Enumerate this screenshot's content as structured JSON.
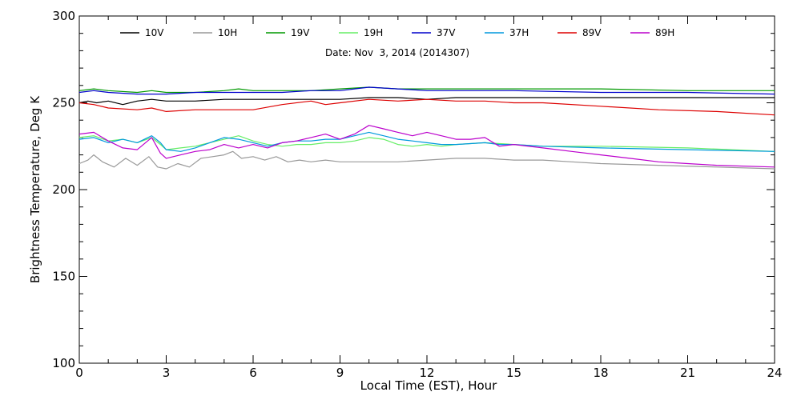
{
  "chart_data": {
    "type": "line",
    "title": "",
    "date_label": "Date: Nov  3, 2014 (2014307)",
    "xlabel": "Local Time (EST), Hour",
    "ylabel": "Brightness Temperature, Deg K",
    "xlim": [
      0,
      24
    ],
    "ylim": [
      100,
      300
    ],
    "xticks": [
      0,
      3,
      6,
      9,
      12,
      15,
      18,
      21,
      24
    ],
    "yticks": [
      100,
      150,
      200,
      250,
      300
    ],
    "grid": false,
    "legend_position": "top",
    "series": [
      {
        "name": "10V",
        "color": "#000000",
        "points": [
          [
            0,
            250
          ],
          [
            0.3,
            251
          ],
          [
            0.6,
            250
          ],
          [
            1,
            251
          ],
          [
            1.5,
            249
          ],
          [
            2,
            251
          ],
          [
            2.5,
            252
          ],
          [
            3,
            251
          ],
          [
            4,
            251
          ],
          [
            5,
            252
          ],
          [
            6,
            252
          ],
          [
            7,
            252
          ],
          [
            8,
            252
          ],
          [
            9,
            252
          ],
          [
            10,
            253
          ],
          [
            11,
            253
          ],
          [
            12,
            252
          ],
          [
            13,
            253
          ],
          [
            14,
            253
          ],
          [
            15,
            253
          ],
          [
            16,
            253
          ],
          [
            18,
            253
          ],
          [
            20,
            253
          ],
          [
            22,
            253
          ],
          [
            24,
            253
          ]
        ]
      },
      {
        "name": "10H",
        "color": "#999999",
        "points": [
          [
            0,
            215
          ],
          [
            0.3,
            217
          ],
          [
            0.5,
            220
          ],
          [
            0.8,
            216
          ],
          [
            1.2,
            213
          ],
          [
            1.6,
            218
          ],
          [
            2,
            214
          ],
          [
            2.4,
            219
          ],
          [
            2.7,
            213
          ],
          [
            3,
            212
          ],
          [
            3.4,
            215
          ],
          [
            3.8,
            213
          ],
          [
            4.2,
            218
          ],
          [
            4.6,
            219
          ],
          [
            5,
            220
          ],
          [
            5.3,
            222
          ],
          [
            5.6,
            218
          ],
          [
            6,
            219
          ],
          [
            6.4,
            217
          ],
          [
            6.8,
            219
          ],
          [
            7.2,
            216
          ],
          [
            7.6,
            217
          ],
          [
            8,
            216
          ],
          [
            8.5,
            217
          ],
          [
            9,
            216
          ],
          [
            10,
            216
          ],
          [
            11,
            216
          ],
          [
            12,
            217
          ],
          [
            13,
            218
          ],
          [
            14,
            218
          ],
          [
            15,
            217
          ],
          [
            16,
            217
          ],
          [
            17,
            216
          ],
          [
            18,
            215
          ],
          [
            20,
            214
          ],
          [
            22,
            213
          ],
          [
            24,
            212
          ]
        ]
      },
      {
        "name": "19V",
        "color": "#009900",
        "points": [
          [
            0,
            257
          ],
          [
            0.5,
            258
          ],
          [
            1,
            257
          ],
          [
            2,
            256
          ],
          [
            2.5,
            257
          ],
          [
            3,
            256
          ],
          [
            4,
            256
          ],
          [
            5,
            257
          ],
          [
            5.5,
            258
          ],
          [
            6,
            257
          ],
          [
            7,
            257
          ],
          [
            8,
            257
          ],
          [
            9,
            258
          ],
          [
            10,
            259
          ],
          [
            11,
            258
          ],
          [
            12,
            258
          ],
          [
            13,
            258
          ],
          [
            14,
            258
          ],
          [
            15,
            258
          ],
          [
            18,
            258
          ],
          [
            21,
            257
          ],
          [
            24,
            257
          ]
        ]
      },
      {
        "name": "19H",
        "color": "#66ee66",
        "points": [
          [
            0,
            230
          ],
          [
            0.5,
            231
          ],
          [
            1,
            228
          ],
          [
            1.5,
            229
          ],
          [
            2,
            227
          ],
          [
            2.5,
            230
          ],
          [
            2.8,
            226
          ],
          [
            3,
            223
          ],
          [
            3.5,
            224
          ],
          [
            4,
            225
          ],
          [
            4.5,
            227
          ],
          [
            5,
            229
          ],
          [
            5.5,
            231
          ],
          [
            6,
            228
          ],
          [
            6.5,
            226
          ],
          [
            7,
            225
          ],
          [
            7.5,
            226
          ],
          [
            8,
            226
          ],
          [
            8.5,
            227
          ],
          [
            9,
            227
          ],
          [
            9.5,
            228
          ],
          [
            10,
            230
          ],
          [
            10.5,
            229
          ],
          [
            11,
            226
          ],
          [
            11.5,
            225
          ],
          [
            12,
            226
          ],
          [
            12.5,
            225
          ],
          [
            13,
            226
          ],
          [
            14,
            227
          ],
          [
            15,
            226
          ],
          [
            16,
            225
          ],
          [
            18,
            225
          ],
          [
            21,
            224
          ],
          [
            24,
            222
          ]
        ]
      },
      {
        "name": "37V",
        "color": "#0000cc",
        "points": [
          [
            0,
            256
          ],
          [
            0.5,
            257
          ],
          [
            1,
            256
          ],
          [
            2,
            255
          ],
          [
            3,
            255
          ],
          [
            4,
            256
          ],
          [
            5,
            256
          ],
          [
            6,
            256
          ],
          [
            7,
            256
          ],
          [
            8,
            257
          ],
          [
            9,
            257
          ],
          [
            10,
            259
          ],
          [
            11,
            258
          ],
          [
            12,
            257
          ],
          [
            13,
            257
          ],
          [
            14,
            257
          ],
          [
            15,
            257
          ],
          [
            18,
            256
          ],
          [
            21,
            256
          ],
          [
            24,
            255
          ]
        ]
      },
      {
        "name": "37H",
        "color": "#0099dd",
        "points": [
          [
            0,
            229
          ],
          [
            0.5,
            230
          ],
          [
            1,
            227
          ],
          [
            1.5,
            229
          ],
          [
            2,
            227
          ],
          [
            2.5,
            231
          ],
          [
            2.8,
            227
          ],
          [
            3,
            223
          ],
          [
            3.5,
            222
          ],
          [
            4,
            224
          ],
          [
            4.5,
            227
          ],
          [
            5,
            230
          ],
          [
            5.5,
            229
          ],
          [
            6,
            227
          ],
          [
            6.5,
            225
          ],
          [
            7,
            227
          ],
          [
            7.5,
            228
          ],
          [
            8,
            228
          ],
          [
            8.5,
            229
          ],
          [
            9,
            229
          ],
          [
            9.5,
            231
          ],
          [
            10,
            233
          ],
          [
            10.5,
            231
          ],
          [
            11,
            229
          ],
          [
            11.5,
            228
          ],
          [
            12,
            227
          ],
          [
            12.5,
            226
          ],
          [
            13,
            226
          ],
          [
            14,
            227
          ],
          [
            14.5,
            226
          ],
          [
            15,
            226
          ],
          [
            16,
            225
          ],
          [
            18,
            224
          ],
          [
            21,
            223
          ],
          [
            24,
            222
          ]
        ]
      },
      {
        "name": "89V",
        "color": "#dd0000",
        "points": [
          [
            0,
            250
          ],
          [
            0.5,
            249
          ],
          [
            1,
            247
          ],
          [
            2,
            246
          ],
          [
            2.5,
            247
          ],
          [
            3,
            245
          ],
          [
            4,
            246
          ],
          [
            5,
            246
          ],
          [
            6,
            246
          ],
          [
            7,
            249
          ],
          [
            8,
            251
          ],
          [
            8.5,
            249
          ],
          [
            9,
            250
          ],
          [
            10,
            252
          ],
          [
            11,
            251
          ],
          [
            12,
            252
          ],
          [
            13,
            251
          ],
          [
            14,
            251
          ],
          [
            15,
            250
          ],
          [
            16,
            250
          ],
          [
            18,
            248
          ],
          [
            20,
            246
          ],
          [
            22,
            245
          ],
          [
            24,
            243
          ]
        ]
      },
      {
        "name": "89H",
        "color": "#bb00cc",
        "points": [
          [
            0,
            232
          ],
          [
            0.5,
            233
          ],
          [
            1,
            228
          ],
          [
            1.5,
            224
          ],
          [
            2,
            223
          ],
          [
            2.5,
            230
          ],
          [
            2.8,
            221
          ],
          [
            3,
            218
          ],
          [
            3.5,
            220
          ],
          [
            4,
            222
          ],
          [
            4.5,
            223
          ],
          [
            5,
            226
          ],
          [
            5.5,
            224
          ],
          [
            6,
            226
          ],
          [
            6.5,
            224
          ],
          [
            7,
            227
          ],
          [
            7.5,
            228
          ],
          [
            8,
            230
          ],
          [
            8.5,
            232
          ],
          [
            9,
            229
          ],
          [
            9.5,
            232
          ],
          [
            10,
            237
          ],
          [
            10.5,
            235
          ],
          [
            11,
            233
          ],
          [
            11.5,
            231
          ],
          [
            12,
            233
          ],
          [
            12.5,
            231
          ],
          [
            13,
            229
          ],
          [
            13.5,
            229
          ],
          [
            14,
            230
          ],
          [
            14.5,
            225
          ],
          [
            15,
            226
          ],
          [
            16,
            224
          ],
          [
            17,
            222
          ],
          [
            18,
            220
          ],
          [
            19,
            218
          ],
          [
            20,
            216
          ],
          [
            21,
            215
          ],
          [
            22,
            214
          ],
          [
            24,
            213
          ]
        ]
      }
    ]
  }
}
